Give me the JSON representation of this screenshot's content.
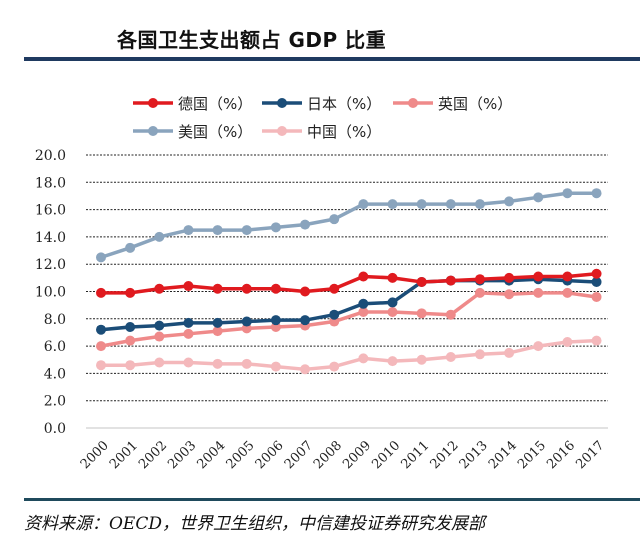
{
  "header": {
    "title": "各国卫生支出额占 GDP 比重"
  },
  "footer": {
    "source": "资料来源：OECD，世界卫生组织，中信建投证券研究发展部"
  },
  "chart_data": {
    "type": "line",
    "title": "各国卫生支出额占 GDP 比重",
    "xlabel": "",
    "ylabel": "",
    "ylim": [
      0,
      20
    ],
    "yticks": [
      "0.0",
      "2.0",
      "4.0",
      "6.0",
      "8.0",
      "10.0",
      "12.0",
      "14.0",
      "16.0",
      "18.0",
      "20.0"
    ],
    "ytick_values": [
      0,
      2,
      4,
      6,
      8,
      10,
      12,
      14,
      16,
      18,
      20
    ],
    "grid": "horizontal-dashed",
    "legend_position": "top",
    "x": [
      "2000",
      "2001",
      "2002",
      "2003",
      "2004",
      "2005",
      "2006",
      "2007",
      "2008",
      "2009",
      "2010",
      "2011",
      "2012",
      "2013",
      "2014",
      "2015",
      "2016",
      "2017"
    ],
    "series": [
      {
        "name": "德国（%）",
        "color": "#e01a1f",
        "values": [
          9.9,
          9.9,
          10.2,
          10.4,
          10.2,
          10.2,
          10.2,
          10.0,
          10.2,
          11.1,
          11.0,
          10.7,
          10.8,
          10.9,
          11.0,
          11.1,
          11.1,
          11.3
        ]
      },
      {
        "name": "日本（%）",
        "color": "#1b4d78",
        "values": [
          7.2,
          7.4,
          7.5,
          7.7,
          7.7,
          7.8,
          7.9,
          7.9,
          8.3,
          9.1,
          9.2,
          10.7,
          10.8,
          10.8,
          10.8,
          10.9,
          10.8,
          10.7
        ]
      },
      {
        "name": "英国（%）",
        "color": "#ef8a8a",
        "values": [
          6.0,
          6.4,
          6.7,
          6.9,
          7.1,
          7.3,
          7.4,
          7.5,
          7.8,
          8.5,
          8.5,
          8.4,
          8.3,
          9.9,
          9.8,
          9.9,
          9.9,
          9.6
        ]
      },
      {
        "name": "美国（%）",
        "color": "#8aa4bd",
        "values": [
          12.5,
          13.2,
          14.0,
          14.5,
          14.5,
          14.5,
          14.7,
          14.9,
          15.3,
          16.4,
          16.4,
          16.4,
          16.4,
          16.4,
          16.6,
          16.9,
          17.2,
          17.2
        ]
      },
      {
        "name": "中国（%）",
        "color": "#f4b8bb",
        "values": [
          4.6,
          4.6,
          4.8,
          4.8,
          4.7,
          4.7,
          4.5,
          4.3,
          4.5,
          5.1,
          4.9,
          5.0,
          5.2,
          5.4,
          5.5,
          6.0,
          6.3,
          6.4
        ]
      }
    ]
  }
}
